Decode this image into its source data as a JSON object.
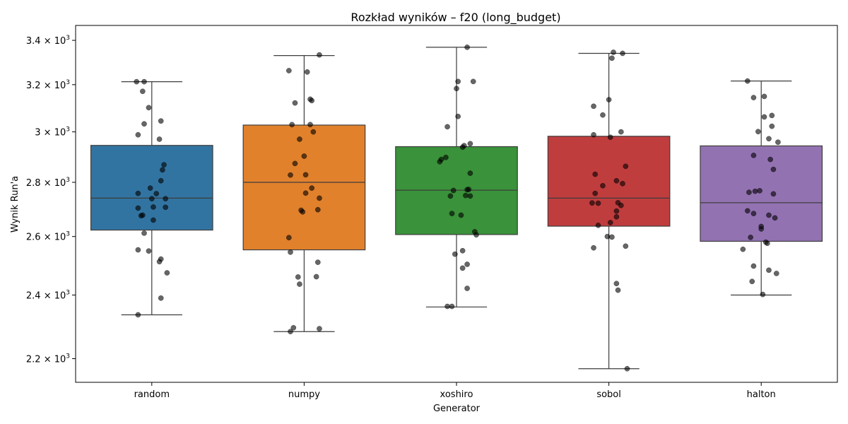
{
  "chart_data": {
    "type": "box",
    "title": "Rozkład wyników – f20 (long_budget)",
    "xlabel": "Generator",
    "ylabel": "Wynik Run'a",
    "yscale": "log",
    "ylim": [
      2130,
      3470
    ],
    "y_ticks": [
      {
        "value": 2200,
        "mantissa": "2.2",
        "base": "10",
        "exp": "3"
      },
      {
        "value": 2400,
        "mantissa": "2.4",
        "base": "10",
        "exp": "3"
      },
      {
        "value": 2600,
        "mantissa": "2.6",
        "base": "10",
        "exp": "3"
      },
      {
        "value": 2800,
        "mantissa": "2.8",
        "base": "10",
        "exp": "3"
      },
      {
        "value": 3000,
        "mantissa": "3",
        "base": "10",
        "exp": "3"
      },
      {
        "value": 3200,
        "mantissa": "3.2",
        "base": "10",
        "exp": "3"
      },
      {
        "value": 3400,
        "mantissa": "3.4",
        "base": "10",
        "exp": "3"
      }
    ],
    "times_symbol": "×",
    "categories": [
      "random",
      "numpy",
      "xoshiro",
      "sobol",
      "halton"
    ],
    "colors": [
      "#3274a1",
      "#e1812c",
      "#3a923a",
      "#c03d3e",
      "#9372b2"
    ],
    "boxes": [
      {
        "name": "random",
        "whisker_low": 2336,
        "q1": 2623,
        "median": 2740,
        "q3": 2945,
        "whisker_high": 3213
      },
      {
        "name": "numpy",
        "whisker_low": 2283,
        "q1": 2553,
        "median": 2800,
        "q3": 3028,
        "whisker_high": 3330
      },
      {
        "name": "xoshiro",
        "whisker_low": 2361,
        "q1": 2607,
        "median": 2770,
        "q3": 2940,
        "whisker_high": 3368
      },
      {
        "name": "sobol",
        "whisker_low": 2170,
        "q1": 2637,
        "median": 2740,
        "q3": 2982,
        "whisker_high": 3340
      },
      {
        "name": "halton",
        "whisker_low": 2400,
        "q1": 2583,
        "median": 2723,
        "q3": 2943,
        "whisker_high": 3216
      }
    ],
    "points": [
      [
        [
          -0.1,
          3213
        ],
        [
          -0.05,
          3213
        ],
        [
          -0.06,
          3171
        ],
        [
          -0.02,
          3101
        ],
        [
          -0.05,
          3033
        ],
        [
          0.06,
          3045
        ],
        [
          -0.09,
          2988
        ],
        [
          0.05,
          2970
        ],
        [
          0.08,
          2868
        ],
        [
          0.07,
          2848
        ],
        [
          0.06,
          2806
        ],
        [
          -0.01,
          2778
        ],
        [
          -0.09,
          2758
        ],
        [
          0.03,
          2757
        ],
        [
          0.0,
          2738
        ],
        [
          0.09,
          2738
        ],
        [
          -0.09,
          2703
        ],
        [
          0.01,
          2707
        ],
        [
          0.09,
          2706
        ],
        [
          -0.07,
          2675
        ],
        [
          -0.06,
          2677
        ],
        [
          0.01,
          2659
        ],
        [
          -0.05,
          2612
        ],
        [
          -0.09,
          2553
        ],
        [
          -0.02,
          2549
        ],
        [
          0.06,
          2521
        ],
        [
          0.05,
          2512
        ],
        [
          0.1,
          2474
        ],
        [
          0.06,
          2390
        ],
        [
          -0.09,
          2336
        ]
      ],
      [
        [
          0.1,
          3333
        ],
        [
          -0.1,
          3262
        ],
        [
          0.02,
          3256
        ],
        [
          0.04,
          3137
        ],
        [
          0.05,
          3131
        ],
        [
          -0.06,
          3121
        ],
        [
          -0.08,
          3030
        ],
        [
          0.04,
          3030
        ],
        [
          0.06,
          3000
        ],
        [
          -0.03,
          2970
        ],
        [
          0.0,
          2902
        ],
        [
          -0.06,
          2873
        ],
        [
          -0.09,
          2828
        ],
        [
          0.01,
          2829
        ],
        [
          0.05,
          2778
        ],
        [
          0.01,
          2759
        ],
        [
          0.1,
          2740
        ],
        [
          -0.02,
          2695
        ],
        [
          -0.01,
          2689
        ],
        [
          0.09,
          2697
        ],
        [
          -0.1,
          2596
        ],
        [
          -0.09,
          2545
        ],
        [
          0.09,
          2510
        ],
        [
          -0.04,
          2460
        ],
        [
          0.08,
          2461
        ],
        [
          -0.03,
          2436
        ],
        [
          -0.07,
          2295
        ],
        [
          0.1,
          2292
        ],
        [
          -0.09,
          2283
        ]
      ],
      [
        [
          0.07,
          3368
        ],
        [
          0.01,
          3214
        ],
        [
          0.11,
          3214
        ],
        [
          0.0,
          3183
        ],
        [
          0.01,
          3064
        ],
        [
          -0.06,
          3021
        ],
        [
          0.09,
          2952
        ],
        [
          0.05,
          2944
        ],
        [
          0.04,
          2938
        ],
        [
          -0.07,
          2897
        ],
        [
          -0.1,
          2889
        ],
        [
          -0.11,
          2880
        ],
        [
          0.09,
          2835
        ],
        [
          0.08,
          2773
        ],
        [
          0.07,
          2772
        ],
        [
          -0.02,
          2769
        ],
        [
          0.06,
          2750
        ],
        [
          0.09,
          2748
        ],
        [
          -0.04,
          2748
        ],
        [
          -0.03,
          2683
        ],
        [
          0.03,
          2677
        ],
        [
          0.12,
          2617
        ],
        [
          0.13,
          2606
        ],
        [
          0.04,
          2550
        ],
        [
          -0.01,
          2538
        ],
        [
          0.07,
          2503
        ],
        [
          0.04,
          2490
        ],
        [
          0.07,
          2422
        ],
        [
          -0.03,
          2363
        ],
        [
          -0.06,
          2363
        ]
      ],
      [
        [
          0.03,
          3345
        ],
        [
          0.09,
          3340
        ],
        [
          0.02,
          3318
        ],
        [
          -0.1,
          3107
        ],
        [
          0.0,
          3135
        ],
        [
          -0.04,
          3070
        ],
        [
          0.08,
          3000
        ],
        [
          -0.1,
          2988
        ],
        [
          0.01,
          2978
        ],
        [
          0.11,
          2862
        ],
        [
          -0.09,
          2831
        ],
        [
          0.05,
          2806
        ],
        [
          0.09,
          2795
        ],
        [
          -0.04,
          2787
        ],
        [
          -0.09,
          2758
        ],
        [
          -0.11,
          2722
        ],
        [
          -0.07,
          2721
        ],
        [
          0.06,
          2723
        ],
        [
          0.08,
          2713
        ],
        [
          0.05,
          2692
        ],
        [
          0.05,
          2671
        ],
        [
          0.01,
          2650
        ],
        [
          -0.07,
          2640
        ],
        [
          -0.01,
          2600
        ],
        [
          0.02,
          2598
        ],
        [
          -0.1,
          2560
        ],
        [
          0.11,
          2566
        ],
        [
          0.05,
          2438
        ],
        [
          0.06,
          2416
        ],
        [
          0.12,
          2170
        ]
      ],
      [
        [
          -0.09,
          3216
        ],
        [
          0.02,
          3149
        ],
        [
          -0.05,
          3144
        ],
        [
          0.02,
          3062
        ],
        [
          0.07,
          3068
        ],
        [
          0.07,
          3023
        ],
        [
          -0.02,
          3001
        ],
        [
          0.05,
          2972
        ],
        [
          0.11,
          2958
        ],
        [
          -0.05,
          2905
        ],
        [
          0.06,
          2889
        ],
        [
          0.08,
          2850
        ],
        [
          -0.01,
          2768
        ],
        [
          -0.08,
          2762
        ],
        [
          -0.04,
          2766
        ],
        [
          0.08,
          2756
        ],
        [
          -0.09,
          2693
        ],
        [
          -0.05,
          2683
        ],
        [
          0.05,
          2677
        ],
        [
          0.09,
          2667
        ],
        [
          0.0,
          2636
        ],
        [
          0.0,
          2627
        ],
        [
          -0.07,
          2597
        ],
        [
          0.03,
          2580
        ],
        [
          0.04,
          2576
        ],
        [
          -0.12,
          2555
        ],
        [
          -0.05,
          2497
        ],
        [
          0.05,
          2483
        ],
        [
          0.1,
          2472
        ],
        [
          -0.06,
          2445
        ],
        [
          0.01,
          2402
        ]
      ]
    ],
    "legend": "none",
    "grid": false
  }
}
